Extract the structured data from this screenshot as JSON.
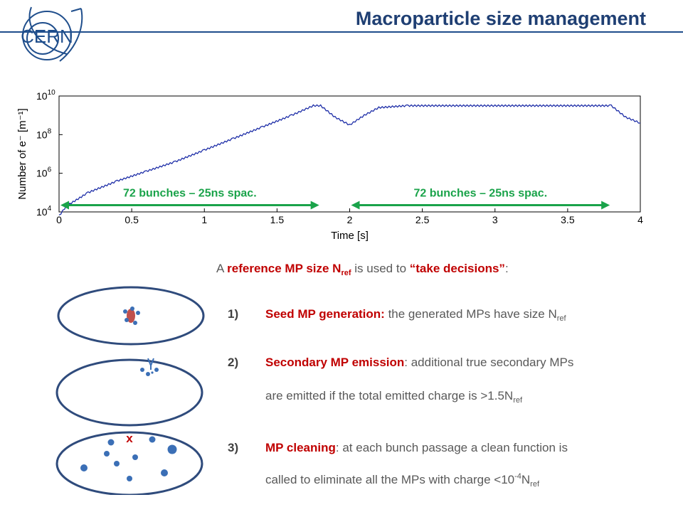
{
  "header": {
    "title": "Macroparticle size management",
    "logo_text": "CERN"
  },
  "chart_data": {
    "type": "line",
    "xlabel": "Time [s]",
    "ylabel": "Number of e⁻ [m⁻¹]",
    "xlim": [
      0,
      4
    ],
    "ylim_log10": [
      4,
      10
    ],
    "yscale": "log",
    "x_ticks": [
      "0",
      "0.5",
      "1",
      "1.5",
      "2",
      "2.5",
      "3",
      "3.5",
      "4"
    ],
    "y_ticks": [
      "10^4",
      "10^6",
      "10^8",
      "10^10"
    ],
    "series": [
      {
        "color": "#1f2fa8",
        "x": [
          0.0,
          0.05,
          0.2,
          0.4,
          0.6,
          0.8,
          1.0,
          1.2,
          1.4,
          1.6,
          1.75,
          1.8,
          1.9,
          2.0,
          2.1,
          2.2,
          2.4,
          3.0,
          3.5,
          3.8,
          3.9,
          4.0
        ],
        "log10_y": [
          3.8,
          4.3,
          5.0,
          5.6,
          6.1,
          6.6,
          7.2,
          7.8,
          8.4,
          9.0,
          9.5,
          9.5,
          8.9,
          8.5,
          9.0,
          9.4,
          9.5,
          9.5,
          9.5,
          9.5,
          8.9,
          8.6
        ]
      }
    ],
    "annotations": [
      {
        "text": "72 bunches – 25ns spac.",
        "x_start": 0.0,
        "x_end": 1.8
      },
      {
        "text": "72 bunches – 25ns spac.",
        "x_start": 2.0,
        "x_end": 3.8
      }
    ],
    "annotation_color": "#1aa34a"
  },
  "intro": {
    "prefix": "A",
    "ref_label": "reference MP size N",
    "ref_sub": "ref",
    "middle": "is used to",
    "decisions": "“take decisions”",
    "suffix": ":"
  },
  "items": [
    {
      "number": "1)",
      "head": "Seed MP generation:",
      "line1": "the generated MPs have size N",
      "line1_sub": "ref",
      "line2": "",
      "line2_sub": ""
    },
    {
      "number": "2)",
      "head": "Secondary MP emission",
      "line1": ": additional true secondary MPs",
      "line1_sub": "",
      "line2": "are emitted if the total emitted charge is >1.5N",
      "line2_sub": "ref"
    },
    {
      "number": "3)",
      "head": "MP cleaning",
      "line1": ": at each bunch passage a clean function is",
      "line1_sub": "",
      "line2": "called to eliminate all the MPs with charge <10",
      "line2_sup": "-4",
      "line2_sub": "N",
      "line2_sub2": "ref"
    }
  ],
  "cleaning_marker": "x",
  "colors": {
    "title": "#1f3f73",
    "accent_red": "#c00000",
    "ellipse_stroke": "#2f4b7c",
    "dot": "#3b6fb6"
  }
}
